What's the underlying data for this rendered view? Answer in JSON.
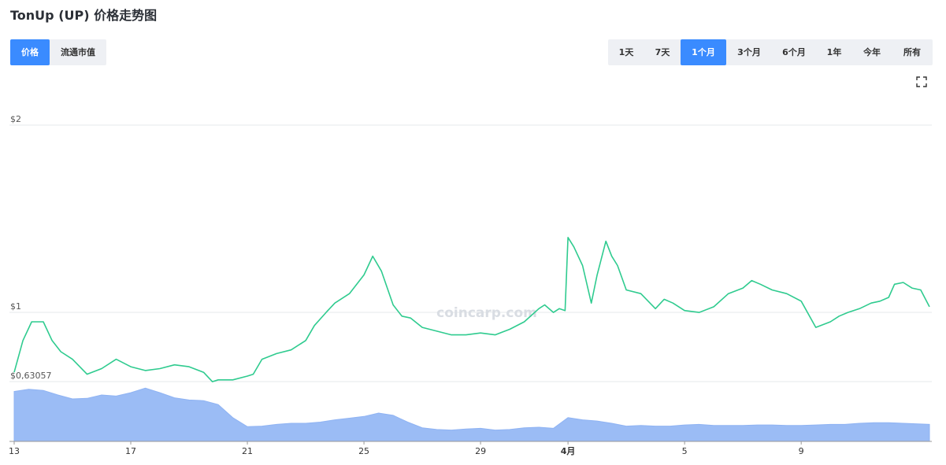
{
  "title": "TonUp (UP) 价格走势图",
  "metric_tabs": [
    {
      "label": "价格",
      "active": true
    },
    {
      "label": "流通市值",
      "active": false
    }
  ],
  "range_tabs": [
    {
      "label": "1天",
      "active": false
    },
    {
      "label": "7天",
      "active": false
    },
    {
      "label": "1个月",
      "active": true
    },
    {
      "label": "3个月",
      "active": false
    },
    {
      "label": "6个月",
      "active": false
    },
    {
      "label": "1年",
      "active": false
    },
    {
      "label": "今年",
      "active": false
    },
    {
      "label": "所有",
      "active": false
    }
  ],
  "watermark": "coincarp.com",
  "colors": {
    "price_line": "#2fcb8f",
    "volume_area": "#9bbcf5",
    "accent": "#3a8bff"
  },
  "chart_data": [
    {
      "type": "line",
      "series": [
        {
          "name": "",
          "x": [
            13.0,
            13.3,
            13.6,
            14.0,
            14.3,
            14.6,
            15.0,
            15.5,
            16.0,
            16.5,
            17.0,
            17.5,
            18.0,
            18.5,
            19.0,
            19.5,
            19.8,
            20.0,
            20.5,
            21.0,
            21.2,
            21.5,
            22.0,
            22.5,
            23.0,
            23.3,
            23.7,
            24.0,
            24.5,
            25.0,
            25.3,
            25.6,
            26.0,
            26.3,
            26.6,
            27.0,
            27.5,
            28.0,
            28.5,
            29.0,
            29.5,
            30.0,
            30.5,
            31.0,
            31.2,
            31.5,
            31.7,
            31.9,
            32.0,
            32.2,
            32.5,
            32.8,
            33.0,
            33.3,
            33.5,
            33.7,
            34.0,
            34.5,
            35.0,
            35.3,
            35.6,
            36.0,
            36.5,
            37.0,
            37.5,
            38.0,
            38.3,
            38.6,
            39.0,
            39.5,
            40.0,
            40.5,
            41.0,
            41.3,
            41.6,
            42.0,
            42.4,
            42.7,
            43.0,
            43.2,
            43.5,
            43.8,
            44.1,
            44.4
          ],
          "values": [
            0.68,
            0.85,
            0.95,
            0.95,
            0.85,
            0.79,
            0.75,
            0.67,
            0.7,
            0.75,
            0.71,
            0.69,
            0.7,
            0.72,
            0.71,
            0.68,
            0.63,
            0.64,
            0.64,
            0.66,
            0.67,
            0.75,
            0.78,
            0.8,
            0.85,
            0.93,
            1.0,
            1.05,
            1.1,
            1.2,
            1.3,
            1.22,
            1.04,
            0.98,
            0.97,
            0.92,
            0.9,
            0.88,
            0.88,
            0.89,
            0.88,
            0.91,
            0.95,
            1.02,
            1.04,
            1.0,
            1.02,
            1.01,
            1.4,
            1.35,
            1.25,
            1.05,
            1.2,
            1.38,
            1.3,
            1.25,
            1.12,
            1.1,
            1.02,
            1.07,
            1.05,
            1.01,
            1.0,
            1.03,
            1.1,
            1.13,
            1.17,
            1.15,
            1.12,
            1.1,
            1.06,
            0.92,
            0.95,
            0.98,
            1.0,
            1.02,
            1.05,
            1.06,
            1.08,
            1.15,
            1.16,
            1.13,
            1.12,
            1.03
          ]
        }
      ],
      "yticks": [
        "$2",
        "$1",
        "$0,63057"
      ],
      "yticks_values": [
        2.0,
        1.0,
        0.63057
      ],
      "xticks": [
        "13",
        "17",
        "21",
        "25",
        "29",
        "4月",
        "5",
        "9"
      ],
      "xticks_values": [
        13,
        17,
        21,
        25,
        29,
        32,
        36,
        40
      ],
      "xlim": [
        13,
        44.4
      ],
      "ylim": [
        0.63057,
        2.0
      ],
      "grid": true,
      "legend": "none"
    },
    {
      "type": "area",
      "series": [
        {
          "name": "",
          "x": [
            13.0,
            13.5,
            14.0,
            14.5,
            15.0,
            15.5,
            16.0,
            16.5,
            17.0,
            17.5,
            18.0,
            18.5,
            19.0,
            19.5,
            20.0,
            20.5,
            21.0,
            21.5,
            22.0,
            22.5,
            23.0,
            23.5,
            24.0,
            24.5,
            25.0,
            25.5,
            26.0,
            26.5,
            27.0,
            27.5,
            28.0,
            28.5,
            29.0,
            29.5,
            30.0,
            30.5,
            31.0,
            31.5,
            32.0,
            32.5,
            33.0,
            33.5,
            34.0,
            34.5,
            35.0,
            35.5,
            36.0,
            36.5,
            37.0,
            37.5,
            38.0,
            38.5,
            39.0,
            39.5,
            40.0,
            40.5,
            41.0,
            41.5,
            42.0,
            42.5,
            43.0,
            43.5,
            44.0,
            44.4
          ],
          "values": [
            0.88,
            0.92,
            0.9,
            0.82,
            0.75,
            0.76,
            0.82,
            0.8,
            0.86,
            0.94,
            0.86,
            0.77,
            0.73,
            0.72,
            0.65,
            0.42,
            0.26,
            0.27,
            0.3,
            0.32,
            0.32,
            0.34,
            0.38,
            0.41,
            0.44,
            0.5,
            0.46,
            0.34,
            0.24,
            0.21,
            0.2,
            0.22,
            0.23,
            0.2,
            0.21,
            0.24,
            0.25,
            0.23,
            0.42,
            0.38,
            0.36,
            0.32,
            0.27,
            0.28,
            0.27,
            0.27,
            0.29,
            0.3,
            0.28,
            0.28,
            0.28,
            0.29,
            0.29,
            0.28,
            0.28,
            0.29,
            0.3,
            0.3,
            0.32,
            0.33,
            0.33,
            0.32,
            0.31,
            0.3
          ]
        }
      ],
      "ylim": [
        0,
        1
      ],
      "legend": "none"
    }
  ]
}
